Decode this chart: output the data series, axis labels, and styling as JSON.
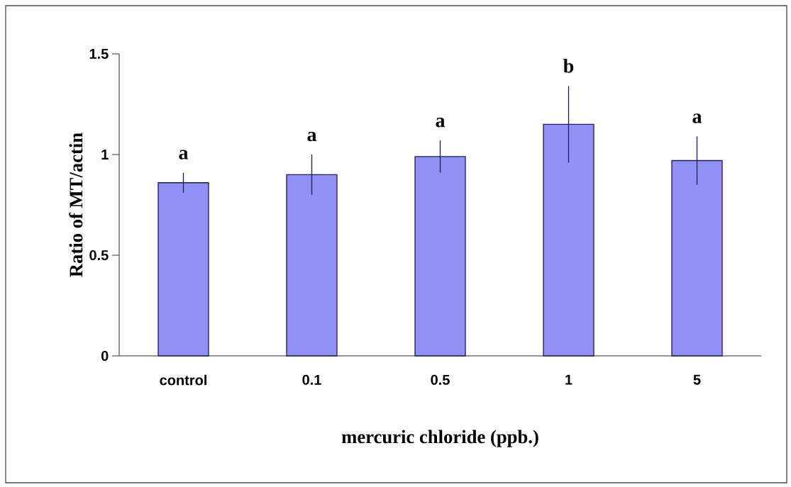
{
  "chart_data": {
    "type": "bar",
    "xlabel": "mercuric chloride (ppb.)",
    "ylabel": "Ratio of MT/actin",
    "categories": [
      "control",
      "0.1",
      "0.5",
      "1",
      "5"
    ],
    "values": [
      0.86,
      0.9,
      0.99,
      1.15,
      0.97
    ],
    "errors": [
      0.05,
      0.1,
      0.08,
      0.19,
      0.12
    ],
    "color": "#9191f5",
    "ylim": [
      0,
      1.5
    ],
    "yticks": [
      0,
      0.5,
      1,
      1.5
    ],
    "annotations": [
      "a",
      "a",
      "a",
      "b",
      "a"
    ]
  }
}
